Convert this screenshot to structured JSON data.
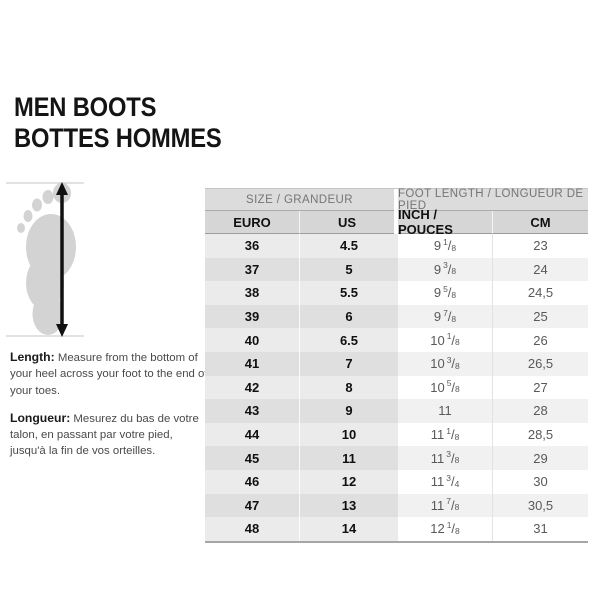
{
  "header": {
    "title_line1": "MEN BOOTS",
    "title_line2": "BOTTES HOMMES"
  },
  "instructions": {
    "length_label": "Length:",
    "length_text": "Measure from the bottom of your heel across your foot to the end of your toes.",
    "longueur_label": "Longueur:",
    "longueur_text": "Mesurez du bas de votre talon, en passant par votre pied, jusqu'à la fin de vos orteilles."
  },
  "icons": {
    "foot_diagram": "foot-silhouette-with-vertical-measure-arrow"
  },
  "colors": {
    "background": "#ffffff",
    "title_text": "#141414",
    "group_header_bg": "#dcdcdc",
    "group_header_text": "#757575",
    "column_header_bg": "#d6d6d6",
    "column_header_text": "#101010",
    "row_left_even_bg": "#ebebeb",
    "row_left_odd_bg": "#dfdfdf",
    "row_right_even_bg": "#ffffff",
    "row_right_odd_bg": "#f1f1f1",
    "value_text": "#595959",
    "table_bottom_border": "#a6a6a6",
    "foot_fill": "#d3d3d3",
    "arrow_color": "#111111",
    "guide_line": "#c4c4c4"
  },
  "table": {
    "group_headers": [
      "SIZE / GRANDEUR",
      "FOOT LENGTH / LONGUEUR DE PIED"
    ],
    "column_headers": [
      "EURO",
      "US",
      "INCH / POUCES",
      "CM"
    ],
    "rows": [
      {
        "euro": "36",
        "us": "4.5",
        "inch": "9 1/8",
        "cm": "23"
      },
      {
        "euro": "37",
        "us": "5",
        "inch": "9 3/8",
        "cm": "24"
      },
      {
        "euro": "38",
        "us": "5.5",
        "inch": "9 5/8",
        "cm": "24,5"
      },
      {
        "euro": "39",
        "us": "6",
        "inch": "9 7/8",
        "cm": "25"
      },
      {
        "euro": "40",
        "us": "6.5",
        "inch": "10 1/8",
        "cm": "26"
      },
      {
        "euro": "41",
        "us": "7",
        "inch": "10 3/8",
        "cm": "26,5"
      },
      {
        "euro": "42",
        "us": "8",
        "inch": "10 5/8",
        "cm": "27"
      },
      {
        "euro": "43",
        "us": "9",
        "inch": "11",
        "cm": "28"
      },
      {
        "euro": "44",
        "us": "10",
        "inch": "11 1/8",
        "cm": "28,5"
      },
      {
        "euro": "45",
        "us": "11",
        "inch": "11 3/8",
        "cm": "29"
      },
      {
        "euro": "46",
        "us": "12",
        "inch": "11 3/4",
        "cm": "30"
      },
      {
        "euro": "47",
        "us": "13",
        "inch": "11 7/8",
        "cm": "30,5"
      },
      {
        "euro": "48",
        "us": "14",
        "inch": "12 1/8",
        "cm": "31"
      }
    ]
  },
  "chart_data": {
    "type": "table",
    "title": "MEN BOOTS / BOTTES HOMMES size chart",
    "columns": [
      "EURO",
      "US",
      "INCH / POUCES",
      "CM"
    ],
    "rows": [
      [
        "36",
        "4.5",
        "9 1/8",
        "23"
      ],
      [
        "37",
        "5",
        "9 3/8",
        "24"
      ],
      [
        "38",
        "5.5",
        "9 5/8",
        "24,5"
      ],
      [
        "39",
        "6",
        "9 7/8",
        "25"
      ],
      [
        "40",
        "6.5",
        "10 1/8",
        "26"
      ],
      [
        "41",
        "7",
        "10 3/8",
        "26,5"
      ],
      [
        "42",
        "8",
        "10 5/8",
        "27"
      ],
      [
        "43",
        "9",
        "11",
        "28"
      ],
      [
        "44",
        "10",
        "11 1/8",
        "28,5"
      ],
      [
        "45",
        "11",
        "11 3/8",
        "29"
      ],
      [
        "46",
        "12",
        "11 3/4",
        "30"
      ],
      [
        "47",
        "13",
        "11 7/8",
        "30,5"
      ],
      [
        "48",
        "14",
        "12 1/8",
        "31"
      ]
    ]
  }
}
